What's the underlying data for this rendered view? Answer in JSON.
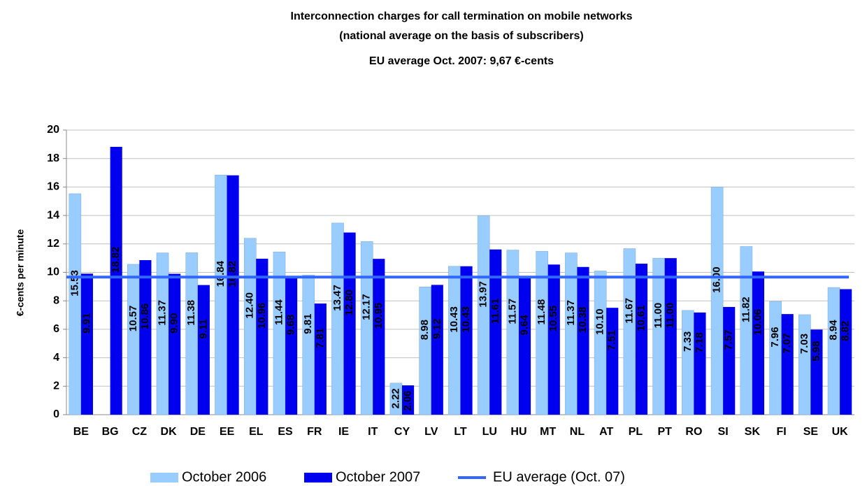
{
  "chart_data": {
    "type": "bar",
    "title": "Interconnection charges for call termination on mobile networks",
    "subtitle": "(national average on the basis of subscribers)",
    "annotation": "EU average Oct. 2007: 9,67 €-cents",
    "ylabel": "€-cents per minute",
    "categories": [
      "BE",
      "BG",
      "CZ",
      "DK",
      "DE",
      "EE",
      "EL",
      "ES",
      "FR",
      "IE",
      "IT",
      "CY",
      "LV",
      "LT",
      "LU",
      "HU",
      "MT",
      "NL",
      "AT",
      "PL",
      "PT",
      "RO",
      "SI",
      "SK",
      "FI",
      "SE",
      "UK"
    ],
    "series": [
      {
        "name": "October 2006",
        "color": "#99ccff",
        "values": [
          15.53,
          null,
          10.57,
          11.37,
          11.38,
          16.84,
          12.4,
          11.44,
          9.81,
          13.47,
          12.17,
          2.22,
          8.98,
          10.43,
          13.97,
          11.57,
          11.48,
          11.37,
          10.1,
          11.67,
          11.0,
          7.33,
          16.0,
          11.82,
          7.96,
          7.03,
          8.94
        ],
        "value_labels": [
          "15.53",
          null,
          "10.57",
          "11.37",
          "11.38",
          "16.84",
          "12.40",
          "11.44",
          "9.81",
          "13.47",
          "12.17",
          "2.22",
          "8.98",
          "10.43",
          "13.97",
          "11.57",
          "11.48",
          "11.37",
          "10.10",
          "11.67",
          "11.00",
          "7.33",
          "16.00",
          "11.82",
          "7.96",
          "7.03",
          "8.94"
        ]
      },
      {
        "name": "October 2007",
        "color": "#0000ee",
        "values": [
          9.91,
          18.82,
          10.86,
          9.9,
          9.11,
          16.82,
          10.96,
          9.68,
          7.81,
          12.8,
          10.95,
          2.06,
          9.12,
          10.43,
          11.61,
          9.64,
          10.55,
          10.38,
          7.51,
          10.61,
          11.0,
          7.18,
          7.57,
          10.06,
          7.07,
          5.98,
          8.82
        ],
        "value_labels": [
          "9.91",
          "18.82",
          "10.86",
          "9.90",
          "9.11",
          "16.82",
          "10.96",
          "9.68",
          "7.81",
          "12.80",
          "10.95",
          "2.06",
          "9.12",
          "10.43",
          "11.61",
          "9.64",
          "10.55",
          "10.38",
          "7.51",
          "10.61",
          "11.00",
          "7.18",
          "7.57",
          "10.06",
          "7.07",
          "5.98",
          "8.82"
        ]
      },
      {
        "name": "EU average (Oct. 07)",
        "type": "line",
        "color": "#3366ff",
        "value": 9.67
      }
    ],
    "ylim": [
      0,
      20
    ],
    "yticks": [
      0,
      2,
      4,
      6,
      8,
      10,
      12,
      14,
      16,
      18,
      20
    ],
    "grid": true
  }
}
